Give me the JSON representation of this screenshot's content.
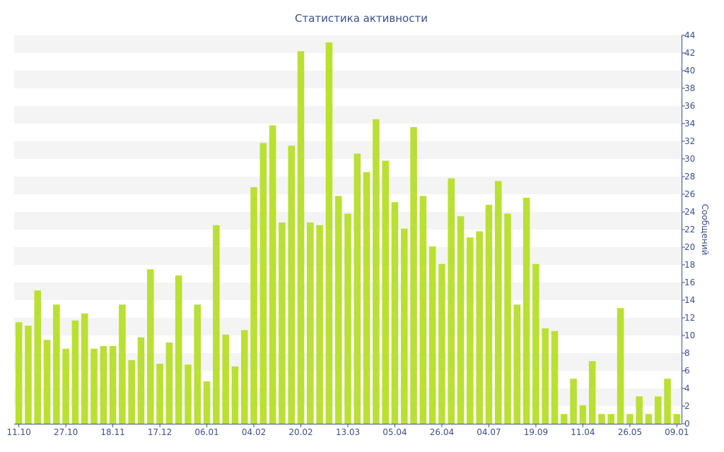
{
  "colors": {
    "bar": "#b9e033",
    "text": "#3b4f8a",
    "band": "#f4f4f4",
    "axis": "#3b4f8a"
  },
  "chart_data": {
    "type": "bar",
    "title": "Статистика активности",
    "xlabel": "",
    "ylabel": "Сообщений",
    "ylim": [
      0,
      44
    ],
    "y_ticks": [
      0,
      2,
      4,
      6,
      8,
      10,
      12,
      14,
      16,
      18,
      20,
      22,
      24,
      26,
      28,
      30,
      32,
      34,
      36,
      38,
      40,
      42,
      44
    ],
    "y_axis_position": "right",
    "grid": "alternating horizontal bands",
    "legend": "none",
    "x_tick_labels": [
      {
        "index": 0,
        "label": "11.10"
      },
      {
        "index": 5,
        "label": "27.10"
      },
      {
        "index": 10,
        "label": "18.11"
      },
      {
        "index": 15,
        "label": "17.12"
      },
      {
        "index": 20,
        "label": "06.01"
      },
      {
        "index": 25,
        "label": "04.02"
      },
      {
        "index": 30,
        "label": "20.02"
      },
      {
        "index": 35,
        "label": "13.03"
      },
      {
        "index": 40,
        "label": "05.04"
      },
      {
        "index": 45,
        "label": "26.04"
      },
      {
        "index": 50,
        "label": "04.07"
      },
      {
        "index": 55,
        "label": "19.09"
      },
      {
        "index": 60,
        "label": "11.04"
      },
      {
        "index": 65,
        "label": "26.05"
      },
      {
        "index": 70,
        "label": "09.01"
      }
    ],
    "values": [
      11.5,
      11.1,
      15.1,
      9.5,
      13.5,
      8.5,
      11.7,
      12.5,
      8.5,
      8.8,
      8.8,
      13.5,
      7.2,
      9.8,
      17.5,
      6.8,
      9.2,
      16.8,
      6.7,
      13.5,
      4.8,
      22.5,
      10.1,
      6.5,
      10.6,
      26.8,
      31.8,
      33.8,
      22.8,
      31.5,
      42.2,
      22.8,
      22.5,
      43.2,
      25.8,
      23.8,
      30.6,
      28.5,
      34.5,
      29.8,
      25.1,
      22.1,
      33.6,
      25.8,
      20.1,
      18.1,
      27.8,
      23.5,
      21.1,
      21.8,
      24.8,
      27.5,
      23.8,
      13.5,
      25.6,
      18.1,
      10.8,
      10.5,
      1.1,
      5.1,
      2.1,
      7.1,
      1.1,
      1.1,
      13.1,
      1.1,
      3.1,
      1.1,
      3.1,
      5.1,
      1.1
    ]
  }
}
